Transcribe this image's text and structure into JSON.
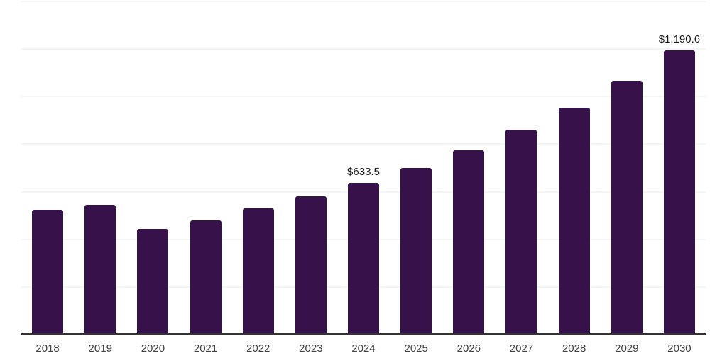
{
  "chart_data": {
    "type": "bar",
    "title": "",
    "xlabel": "",
    "ylabel": "",
    "categories": [
      "2018",
      "2019",
      "2020",
      "2021",
      "2022",
      "2023",
      "2024",
      "2025",
      "2026",
      "2027",
      "2028",
      "2029",
      "2030"
    ],
    "values": [
      521,
      541,
      440,
      476,
      527,
      577,
      633.5,
      696,
      771,
      857,
      950,
      1063,
      1190.6
    ],
    "data_labels": {
      "2024": "$633.5",
      "2030": "$1,190.6"
    },
    "ylim": [
      0,
      1400
    ],
    "gridline_step": 200,
    "grid": true,
    "legend_position": "none",
    "colors": {
      "bar": "#36114A",
      "axis_line": "#333333",
      "gridline": "#f5f5f5",
      "tick_label": "#404040",
      "data_label": "#1a1a1a",
      "background": "#ffffff"
    }
  }
}
